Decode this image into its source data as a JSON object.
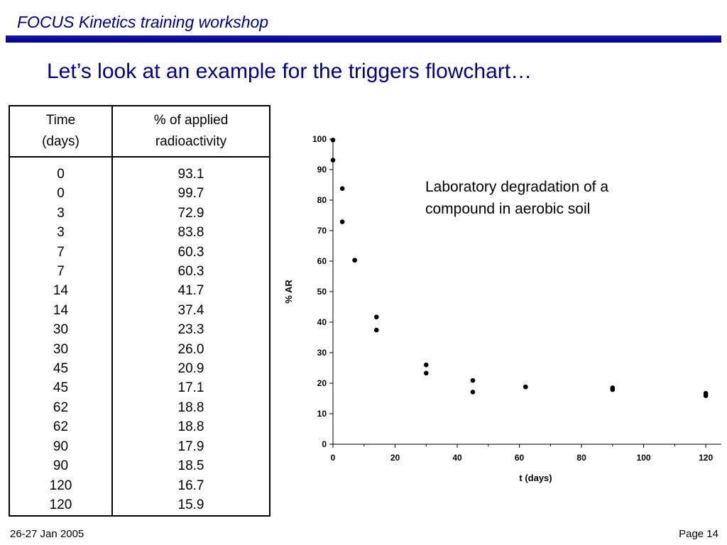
{
  "header": {
    "title": "FOCUS Kinetics training workshop",
    "accent_color": "#000080"
  },
  "slide": {
    "title": "Let’s look at an example for the triggers flowchart…"
  },
  "table": {
    "headers": [
      [
        "Time",
        "(days)"
      ],
      [
        "% of applied",
        "radioactivity"
      ]
    ],
    "time": [
      "0",
      "0",
      "3",
      "3",
      "7",
      "7",
      "14",
      "14",
      "30",
      "30",
      "45",
      "45",
      "62",
      "62",
      "90",
      "90",
      "120",
      "120"
    ],
    "percent": [
      "93.1",
      "99.7",
      "72.9",
      "83.8",
      "60.3",
      "60.3",
      "41.7",
      "37.4",
      "23.3",
      "26.0",
      "20.9",
      "17.1",
      "18.8",
      "18.8",
      "17.9",
      "18.5",
      "16.7",
      "15.9"
    ]
  },
  "chart_data": {
    "type": "scatter",
    "xlabel": "t (days)",
    "ylabel": "% AR",
    "xlim": [
      0,
      125
    ],
    "ylim": [
      0,
      100
    ],
    "xticks": [
      0,
      20,
      40,
      60,
      80,
      100,
      120
    ],
    "yticks": [
      0,
      10,
      20,
      30,
      40,
      50,
      60,
      70,
      80,
      90,
      100
    ],
    "grid": false,
    "marker_color": "#000000",
    "points": [
      [
        0,
        93.1
      ],
      [
        0,
        99.7
      ],
      [
        3,
        72.9
      ],
      [
        3,
        83.8
      ],
      [
        7,
        60.3
      ],
      [
        7,
        60.3
      ],
      [
        14,
        41.7
      ],
      [
        14,
        37.4
      ],
      [
        30,
        23.3
      ],
      [
        30,
        26.0
      ],
      [
        45,
        20.9
      ],
      [
        45,
        17.1
      ],
      [
        62,
        18.8
      ],
      [
        62,
        18.8
      ],
      [
        90,
        17.9
      ],
      [
        90,
        18.5
      ],
      [
        120,
        16.7
      ],
      [
        120,
        15.9
      ]
    ]
  },
  "annotation": {
    "lines": [
      "Laboratory degradation of a",
      "compound in aerobic soil"
    ]
  },
  "footer": {
    "date": "26-27 Jan 2005",
    "page": "Page 14"
  }
}
